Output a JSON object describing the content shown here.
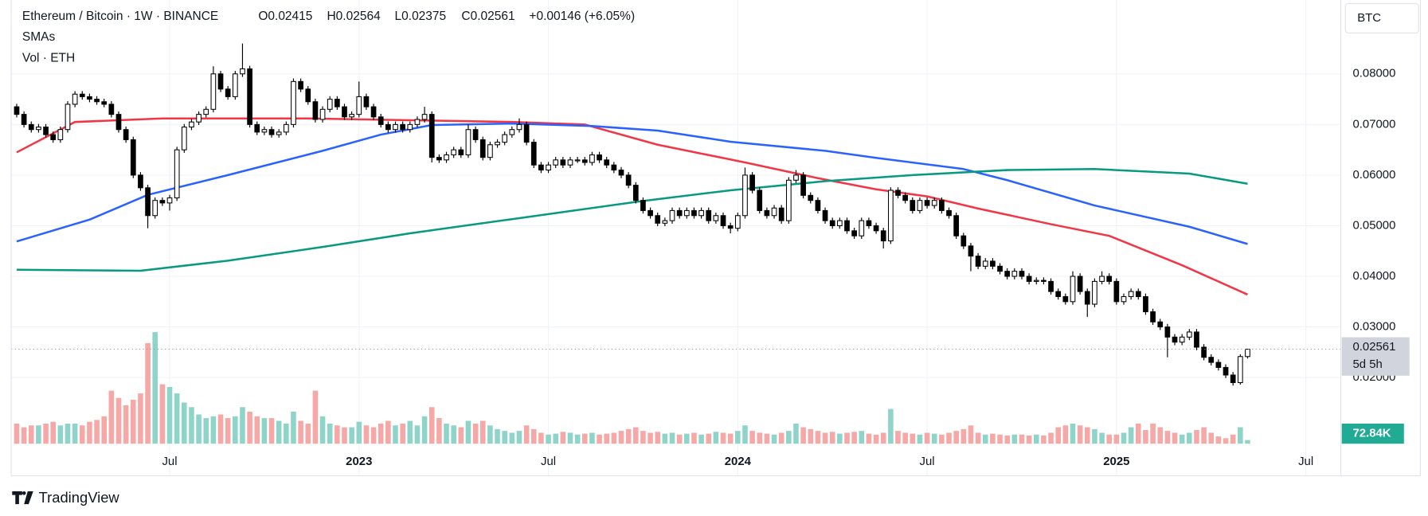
{
  "chart_data": {
    "type": "candlestick",
    "title": "Ethereum / Bitcoin · 1W · BINANCE",
    "ohlc_labels": [
      "O0.02415",
      "H0.02564",
      "L0.02375",
      "C0.02561"
    ],
    "change": "+0.00146 (+6.05%)",
    "indicators": [
      "SMAs",
      "Vol · ETH"
    ],
    "currency": "BTC",
    "last_price_label": "0.02561",
    "countdown": "5d 5h",
    "last_volume_label": "72.84K",
    "brand": "TradingView",
    "up_color": "#ffffff",
    "down_color": "#000000",
    "volume_up_color": "#8fd4c9",
    "volume_down_color": "#f6a8a6",
    "grid": true,
    "xlim": [
      -0.75,
      181.8
    ],
    "ylim": [
      0.0006,
      0.0946
    ],
    "yticks": [
      {
        "value": 0.08,
        "label": "0.08000"
      },
      {
        "value": 0.07,
        "label": "0.07000"
      },
      {
        "value": 0.06,
        "label": "0.06000"
      },
      {
        "value": 0.05,
        "label": "0.05000"
      },
      {
        "value": 0.04,
        "label": "0.04000"
      },
      {
        "value": 0.03,
        "label": "0.03000"
      },
      {
        "value": 0.02,
        "label": "0.02000"
      }
    ],
    "xticks": [
      {
        "value": 21,
        "label": "Jul"
      },
      {
        "value": 47,
        "label": "2023"
      },
      {
        "value": 73,
        "label": "Jul"
      },
      {
        "value": 99,
        "label": "2024"
      },
      {
        "value": 125,
        "label": "Jul"
      },
      {
        "value": 151,
        "label": "2025"
      },
      {
        "value": 177,
        "label": "Jul"
      }
    ],
    "x": [
      0,
      1,
      2,
      3,
      4,
      5,
      6,
      7,
      8,
      9,
      10,
      11,
      12,
      13,
      14,
      15,
      16,
      17,
      18,
      19,
      20,
      21,
      22,
      23,
      24,
      25,
      26,
      27,
      28,
      29,
      30,
      31,
      32,
      33,
      34,
      35,
      36,
      37,
      38,
      39,
      40,
      41,
      42,
      43,
      44,
      45,
      46,
      47,
      48,
      49,
      50,
      51,
      52,
      53,
      54,
      55,
      56,
      57,
      58,
      59,
      60,
      61,
      62,
      63,
      64,
      65,
      66,
      67,
      68,
      69,
      70,
      71,
      72,
      73,
      74,
      75,
      76,
      77,
      78,
      79,
      80,
      81,
      82,
      83,
      84,
      85,
      86,
      87,
      88,
      89,
      90,
      91,
      92,
      93,
      94,
      95,
      96,
      97,
      98,
      99,
      100,
      101,
      102,
      103,
      104,
      105,
      106,
      107,
      108,
      109,
      110,
      111,
      112,
      113,
      114,
      115,
      116,
      117,
      118,
      119,
      120,
      121,
      122,
      123,
      124,
      125,
      126,
      127,
      128,
      129,
      130,
      131,
      132,
      133,
      134,
      135,
      136,
      137,
      138,
      139,
      140,
      141,
      142,
      143,
      144,
      145,
      146,
      147,
      148,
      149,
      150,
      151,
      152,
      153,
      154,
      155,
      156,
      157,
      158,
      159,
      160,
      161,
      162,
      163,
      164,
      165,
      166,
      167,
      168,
      169
    ],
    "open": [
      0.0735,
      0.072,
      0.07,
      0.069,
      0.0695,
      0.068,
      0.067,
      0.069,
      0.074,
      0.076,
      0.0755,
      0.075,
      0.0745,
      0.074,
      0.072,
      0.069,
      0.067,
      0.06,
      0.0575,
      0.052,
      0.055,
      0.0545,
      0.0555,
      0.065,
      0.0695,
      0.0705,
      0.072,
      0.073,
      0.08,
      0.077,
      0.0755,
      0.08,
      0.081,
      0.07,
      0.0685,
      0.069,
      0.068,
      0.0685,
      0.07,
      0.0785,
      0.077,
      0.0745,
      0.071,
      0.073,
      0.075,
      0.0735,
      0.0715,
      0.072,
      0.0755,
      0.0735,
      0.0715,
      0.07,
      0.069,
      0.07,
      0.069,
      0.07,
      0.071,
      0.072,
      0.0635,
      0.063,
      0.064,
      0.065,
      0.064,
      0.069,
      0.067,
      0.0635,
      0.066,
      0.0665,
      0.068,
      0.069,
      0.07,
      0.0665,
      0.062,
      0.061,
      0.062,
      0.063,
      0.062,
      0.063,
      0.063,
      0.0625,
      0.064,
      0.063,
      0.062,
      0.061,
      0.06,
      0.058,
      0.055,
      0.053,
      0.052,
      0.0505,
      0.051,
      0.053,
      0.052,
      0.053,
      0.052,
      0.053,
      0.051,
      0.052,
      0.05,
      0.0495,
      0.052,
      0.06,
      0.057,
      0.053,
      0.052,
      0.0535,
      0.051,
      0.059,
      0.06,
      0.056,
      0.055,
      0.053,
      0.051,
      0.05,
      0.051,
      0.049,
      0.048,
      0.051,
      0.05,
      0.049,
      0.047,
      0.057,
      0.056,
      0.055,
      0.053,
      0.055,
      0.054,
      0.055,
      0.053,
      0.052,
      0.048,
      0.046,
      0.044,
      0.042,
      0.043,
      0.042,
      0.041,
      0.04,
      0.041,
      0.04,
      0.039,
      0.0392,
      0.039,
      0.037,
      0.036,
      0.035,
      0.04,
      0.037,
      0.0345,
      0.039,
      0.04,
      0.039,
      0.035,
      0.036,
      0.037,
      0.036,
      0.033,
      0.031,
      0.03,
      0.028,
      0.027,
      0.028,
      0.029,
      0.026,
      0.024,
      0.023,
      0.022,
      0.0205,
      0.019,
      0.02415
    ],
    "high": [
      0.0741,
      0.0726,
      0.0706,
      0.0701,
      0.0701,
      0.0686,
      0.0696,
      0.0746,
      0.0766,
      0.0766,
      0.0761,
      0.0756,
      0.0751,
      0.0746,
      0.0726,
      0.0696,
      0.0676,
      0.0606,
      0.0581,
      0.0556,
      0.0556,
      0.0561,
      0.0656,
      0.0701,
      0.0711,
      0.0726,
      0.0736,
      0.0815,
      0.0806,
      0.0776,
      0.0806,
      0.086,
      0.0816,
      0.0706,
      0.0696,
      0.0696,
      0.0691,
      0.0706,
      0.0791,
      0.0791,
      0.0776,
      0.0751,
      0.0736,
      0.0756,
      0.0756,
      0.0741,
      0.0726,
      0.0785,
      0.0761,
      0.0741,
      0.0721,
      0.0706,
      0.0706,
      0.0706,
      0.0706,
      0.0716,
      0.0735,
      0.0726,
      0.0641,
      0.0646,
      0.0656,
      0.0656,
      0.07,
      0.0696,
      0.0676,
      0.0666,
      0.0671,
      0.0686,
      0.0696,
      0.0712,
      0.0706,
      0.0671,
      0.0626,
      0.0626,
      0.0636,
      0.0636,
      0.0636,
      0.0636,
      0.0636,
      0.0646,
      0.0646,
      0.0636,
      0.0626,
      0.0616,
      0.0606,
      0.0586,
      0.0556,
      0.0536,
      0.0526,
      0.0516,
      0.0536,
      0.0536,
      0.0536,
      0.0536,
      0.0536,
      0.0536,
      0.0526,
      0.0526,
      0.0506,
      0.0526,
      0.0615,
      0.0606,
      0.0576,
      0.0536,
      0.0541,
      0.0541,
      0.0596,
      0.061,
      0.0606,
      0.0566,
      0.0556,
      0.0536,
      0.0516,
      0.0516,
      0.0516,
      0.0496,
      0.0516,
      0.0516,
      0.0506,
      0.0496,
      0.0576,
      0.0576,
      0.0566,
      0.0556,
      0.0556,
      0.0556,
      0.0556,
      0.0556,
      0.0536,
      0.0526,
      0.0486,
      0.0466,
      0.0446,
      0.0436,
      0.0436,
      0.0426,
      0.0416,
      0.0416,
      0.0416,
      0.0406,
      0.0398,
      0.0398,
      0.0396,
      0.0376,
      0.0366,
      0.041,
      0.0406,
      0.0376,
      0.0396,
      0.041,
      0.0406,
      0.0396,
      0.0366,
      0.0376,
      0.0376,
      0.0366,
      0.0336,
      0.0316,
      0.0306,
      0.0286,
      0.0286,
      0.0296,
      0.0296,
      0.0266,
      0.0246,
      0.0236,
      0.0226,
      0.0211,
      0.0246,
      0.02564
    ],
    "low": [
      0.0714,
      0.0694,
      0.0684,
      0.0684,
      0.0674,
      0.0664,
      0.0664,
      0.0684,
      0.0734,
      0.0749,
      0.0744,
      0.0739,
      0.0734,
      0.0714,
      0.0684,
      0.0664,
      0.0594,
      0.0569,
      0.0495,
      0.0514,
      0.0539,
      0.053,
      0.0549,
      0.0644,
      0.0689,
      0.0699,
      0.0714,
      0.0724,
      0.0764,
      0.0749,
      0.0749,
      0.0794,
      0.0694,
      0.0679,
      0.0679,
      0.0674,
      0.0674,
      0.0679,
      0.0694,
      0.0764,
      0.0739,
      0.0704,
      0.0704,
      0.0724,
      0.0729,
      0.0709,
      0.0709,
      0.0714,
      0.0729,
      0.0709,
      0.0694,
      0.0684,
      0.0684,
      0.0684,
      0.0684,
      0.0694,
      0.0704,
      0.0625,
      0.0624,
      0.0624,
      0.0634,
      0.0634,
      0.0634,
      0.0664,
      0.0629,
      0.0629,
      0.0654,
      0.0659,
      0.0674,
      0.0684,
      0.0659,
      0.0614,
      0.0604,
      0.0604,
      0.0614,
      0.0614,
      0.0614,
      0.0624,
      0.0619,
      0.0619,
      0.0624,
      0.0614,
      0.0604,
      0.0594,
      0.0574,
      0.0544,
      0.0524,
      0.0514,
      0.0499,
      0.0499,
      0.0504,
      0.0514,
      0.0514,
      0.0514,
      0.0514,
      0.0504,
      0.0504,
      0.0494,
      0.0485,
      0.0489,
      0.0514,
      0.0564,
      0.0524,
      0.0514,
      0.0514,
      0.0504,
      0.0504,
      0.0584,
      0.0554,
      0.0544,
      0.0524,
      0.0504,
      0.0494,
      0.0494,
      0.0484,
      0.0474,
      0.0474,
      0.0494,
      0.0484,
      0.0455,
      0.0464,
      0.0554,
      0.0544,
      0.0524,
      0.0524,
      0.0534,
      0.0534,
      0.0524,
      0.0514,
      0.0474,
      0.0454,
      0.041,
      0.0414,
      0.0414,
      0.0414,
      0.0404,
      0.0394,
      0.0394,
      0.0394,
      0.0384,
      0.0384,
      0.0384,
      0.0364,
      0.0354,
      0.0344,
      0.0344,
      0.0364,
      0.032,
      0.0339,
      0.0384,
      0.0384,
      0.0344,
      0.0344,
      0.0354,
      0.0354,
      0.0324,
      0.0304,
      0.0294,
      0.024,
      0.0264,
      0.0264,
      0.0274,
      0.0254,
      0.0234,
      0.0224,
      0.0214,
      0.0199,
      0.0184,
      0.0186,
      0.02375
    ],
    "close": [
      0.072,
      0.07,
      0.069,
      0.0695,
      0.068,
      0.067,
      0.069,
      0.074,
      0.076,
      0.0755,
      0.075,
      0.0745,
      0.074,
      0.072,
      0.069,
      0.067,
      0.06,
      0.0575,
      0.052,
      0.055,
      0.0545,
      0.0555,
      0.065,
      0.0695,
      0.0705,
      0.072,
      0.073,
      0.08,
      0.077,
      0.0755,
      0.08,
      0.081,
      0.07,
      0.0685,
      0.069,
      0.068,
      0.0685,
      0.07,
      0.0785,
      0.077,
      0.0745,
      0.071,
      0.073,
      0.075,
      0.0735,
      0.0715,
      0.072,
      0.0755,
      0.0735,
      0.0715,
      0.07,
      0.069,
      0.07,
      0.069,
      0.07,
      0.071,
      0.072,
      0.0635,
      0.063,
      0.064,
      0.065,
      0.064,
      0.069,
      0.067,
      0.0635,
      0.066,
      0.0665,
      0.068,
      0.069,
      0.07,
      0.0665,
      0.062,
      0.061,
      0.062,
      0.063,
      0.062,
      0.063,
      0.063,
      0.0625,
      0.064,
      0.063,
      0.062,
      0.061,
      0.06,
      0.058,
      0.055,
      0.053,
      0.052,
      0.0505,
      0.051,
      0.053,
      0.052,
      0.053,
      0.052,
      0.053,
      0.051,
      0.052,
      0.05,
      0.0495,
      0.052,
      0.06,
      0.057,
      0.053,
      0.052,
      0.0535,
      0.051,
      0.059,
      0.06,
      0.056,
      0.055,
      0.053,
      0.051,
      0.05,
      0.051,
      0.049,
      0.048,
      0.051,
      0.05,
      0.049,
      0.047,
      0.057,
      0.056,
      0.055,
      0.053,
      0.055,
      0.054,
      0.055,
      0.053,
      0.052,
      0.048,
      0.046,
      0.044,
      0.042,
      0.043,
      0.042,
      0.041,
      0.04,
      0.041,
      0.04,
      0.039,
      0.0392,
      0.039,
      0.037,
      0.036,
      0.035,
      0.04,
      0.037,
      0.0345,
      0.039,
      0.04,
      0.039,
      0.035,
      0.036,
      0.037,
      0.036,
      0.033,
      0.031,
      0.03,
      0.028,
      0.027,
      0.028,
      0.029,
      0.026,
      0.024,
      0.023,
      0.022,
      0.0205,
      0.019,
      0.02415,
      0.02561
    ],
    "volume": [
      396000,
      324000,
      360000,
      360000,
      396000,
      432000,
      360000,
      396000,
      396000,
      360000,
      432000,
      468000,
      540000,
      1044000,
      900000,
      756000,
      864000,
      990000,
      1980000,
      2196000,
      1170000,
      1116000,
      990000,
      810000,
      720000,
      576000,
      504000,
      540000,
      576000,
      504000,
      540000,
      720000,
      630000,
      540000,
      504000,
      504000,
      450000,
      396000,
      630000,
      450000,
      396000,
      1044000,
      540000,
      396000,
      360000,
      324000,
      324000,
      432000,
      360000,
      324000,
      396000,
      450000,
      360000,
      396000,
      450000,
      360000,
      540000,
      720000,
      504000,
      396000,
      360000,
      324000,
      450000,
      396000,
      450000,
      360000,
      288000,
      252000,
      216000,
      252000,
      360000,
      288000,
      216000,
      180000,
      198000,
      234000,
      216000,
      180000,
      198000,
      216000,
      180000,
      198000,
      216000,
      252000,
      288000,
      324000,
      252000,
      216000,
      234000,
      198000,
      216000,
      180000,
      198000,
      216000,
      180000,
      198000,
      234000,
      216000,
      198000,
      252000,
      360000,
      252000,
      216000,
      198000,
      180000,
      216000,
      252000,
      396000,
      324000,
      288000,
      252000,
      216000,
      234000,
      198000,
      216000,
      234000,
      252000,
      198000,
      180000,
      216000,
      684000,
      252000,
      216000,
      198000,
      180000,
      216000,
      198000,
      180000,
      216000,
      252000,
      288000,
      360000,
      216000,
      180000,
      198000,
      180000,
      162000,
      180000,
      180000,
      162000,
      180000,
      162000,
      216000,
      324000,
      360000,
      396000,
      360000,
      324000,
      288000,
      216000,
      180000,
      180000,
      216000,
      324000,
      396000,
      270000,
      396000,
      324000,
      252000,
      216000,
      180000,
      216000,
      270000,
      324000,
      216000,
      144000,
      108000,
      180000,
      324000,
      72840
    ],
    "series": [
      {
        "color": "#f23645",
        "x": [
          0,
          8,
          20,
          40,
          56,
          68,
          78,
          88,
          100,
          110,
          118,
          125,
          132,
          142,
          150,
          160,
          169
        ],
        "values": [
          0.0645,
          0.0705,
          0.0712,
          0.0712,
          0.0708,
          0.0705,
          0.07,
          0.066,
          0.0625,
          0.0594,
          0.0572,
          0.0558,
          0.0534,
          0.0503,
          0.048,
          0.0422,
          0.0364
        ]
      },
      {
        "color": "#2962ff",
        "x": [
          0,
          10,
          18,
          29,
          42,
          50,
          57,
          68,
          79,
          88,
          98,
          111,
          118,
          130,
          136,
          148,
          161,
          169
        ],
        "values": [
          0.0469,
          0.0512,
          0.0561,
          0.06,
          0.0648,
          0.068,
          0.0699,
          0.0702,
          0.0697,
          0.0688,
          0.0666,
          0.0648,
          0.0634,
          0.0612,
          0.059,
          0.054,
          0.0498,
          0.0464
        ]
      },
      {
        "color": "#089981",
        "x": [
          0,
          17,
          29,
          42,
          54,
          68,
          86,
          98,
          111,
          123,
          136,
          148,
          161,
          169
        ],
        "values": [
          0.0413,
          0.0411,
          0.0431,
          0.0458,
          0.0485,
          0.0513,
          0.0549,
          0.057,
          0.0588,
          0.06,
          0.061,
          0.0612,
          0.0603,
          0.0583
        ]
      }
    ]
  }
}
